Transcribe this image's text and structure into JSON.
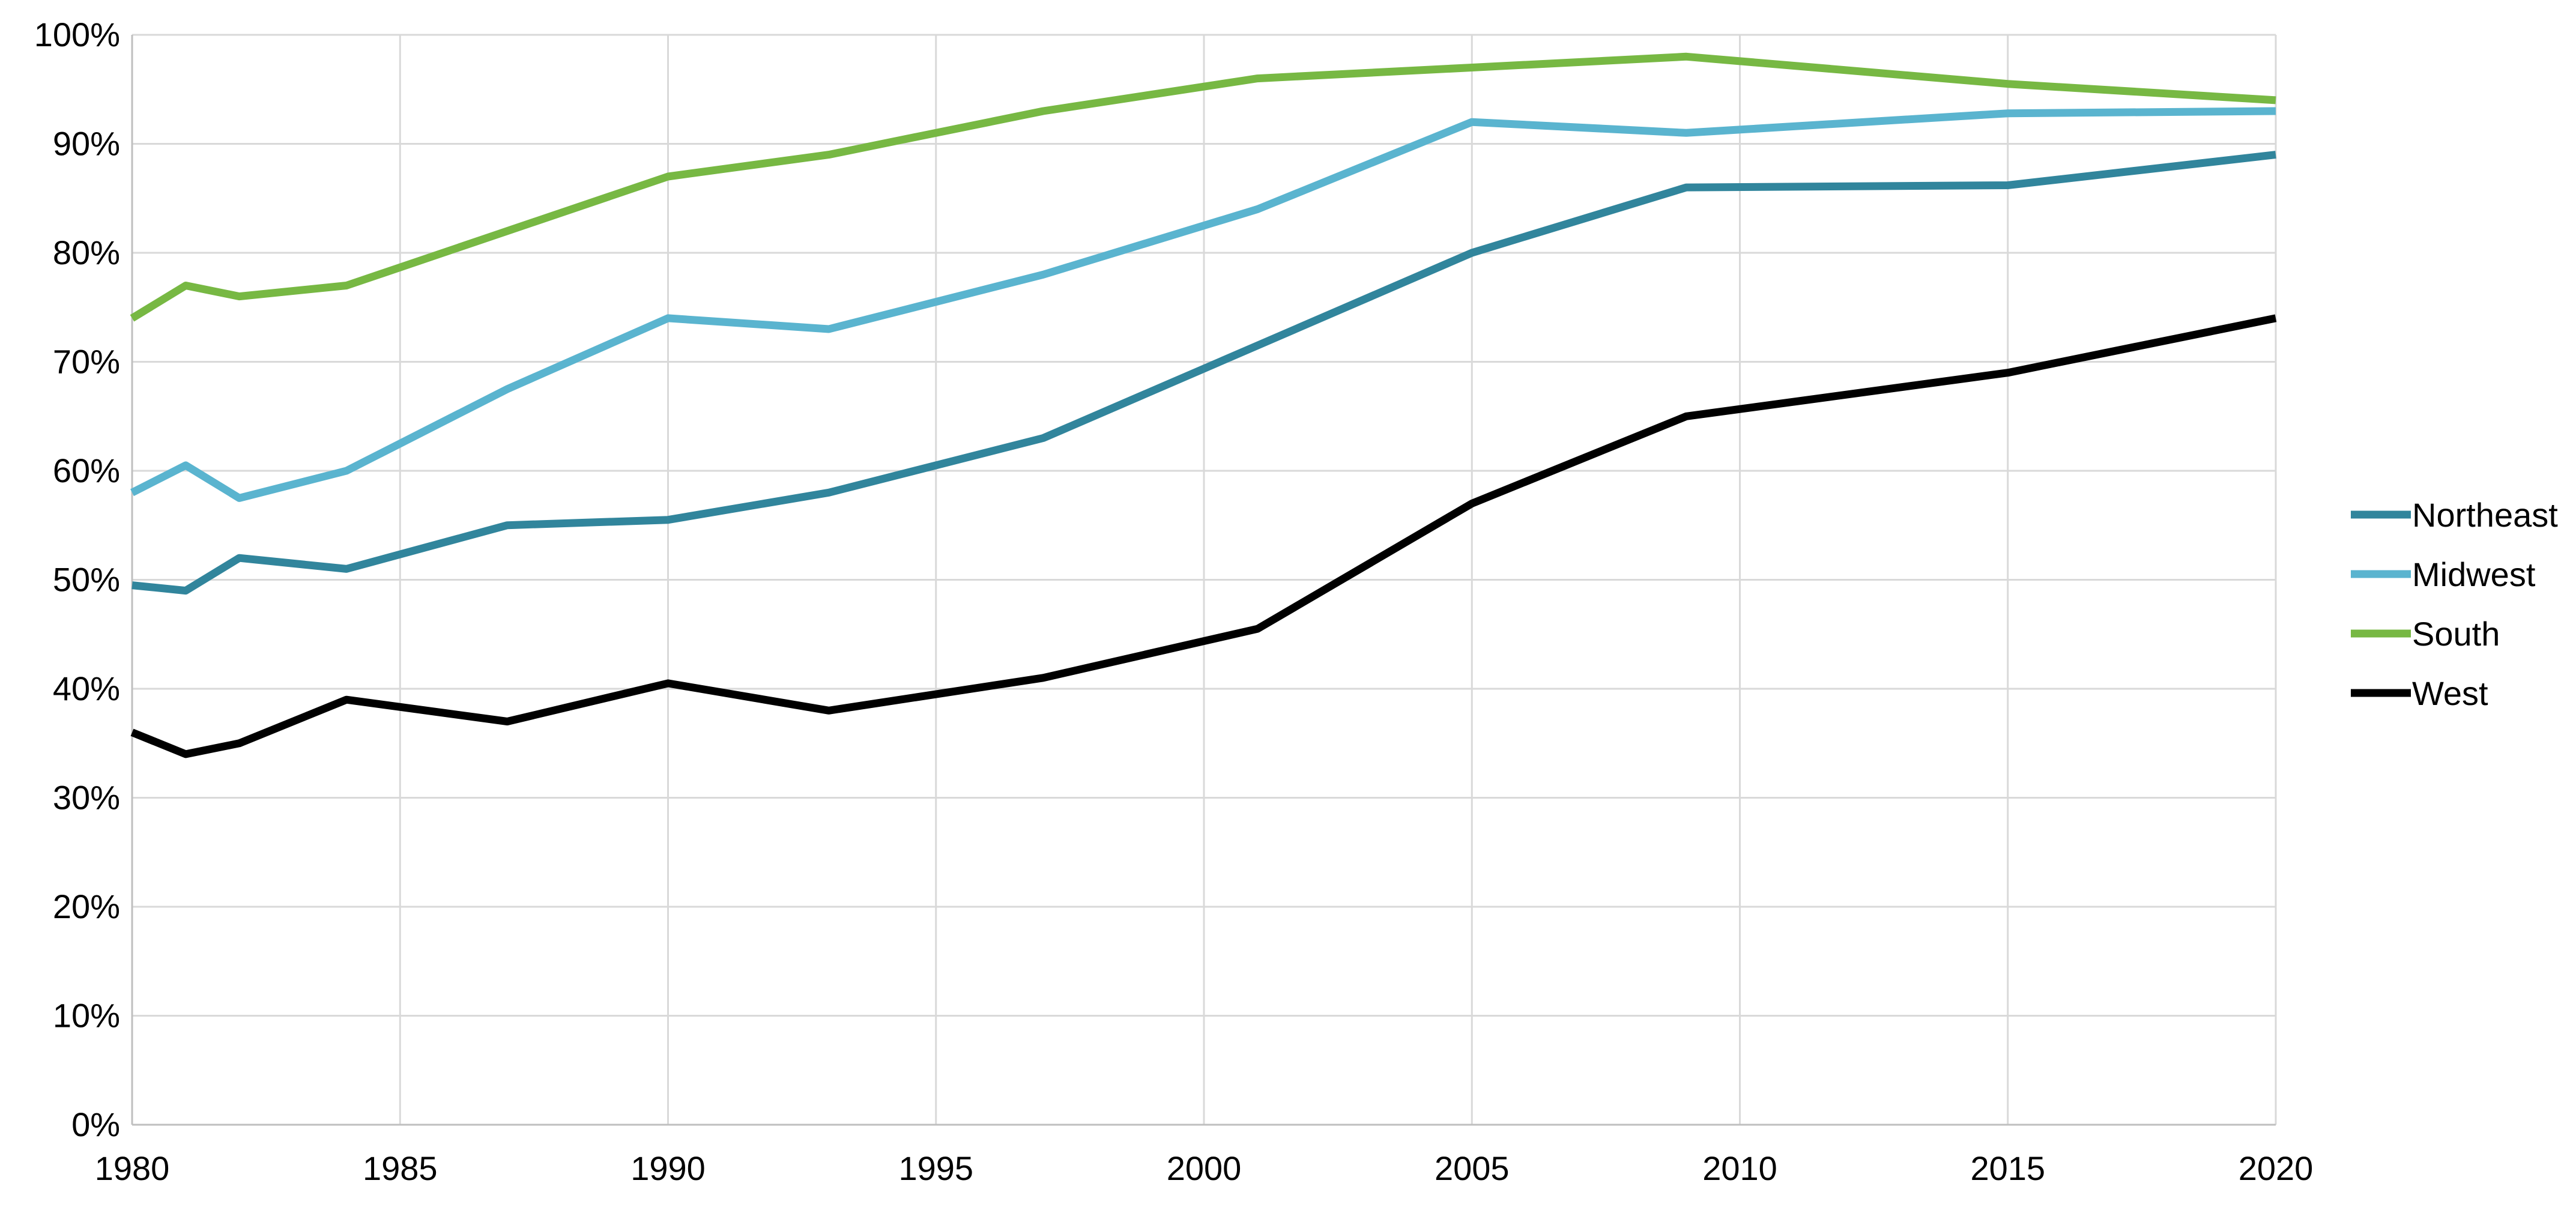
{
  "chart_data": {
    "type": "line",
    "title": "",
    "xlabel": "",
    "ylabel": "",
    "xlim": [
      1980,
      2020
    ],
    "ylim": [
      0,
      100
    ],
    "x_ticks": [
      1980,
      1985,
      1990,
      1995,
      2000,
      2005,
      2010,
      2015,
      2020
    ],
    "y_ticks": [
      0,
      10,
      20,
      30,
      40,
      50,
      60,
      70,
      80,
      90,
      100
    ],
    "y_tick_labels": [
      "0%",
      "10%",
      "20%",
      "30%",
      "40%",
      "50%",
      "60%",
      "70%",
      "80%",
      "90%",
      "100%"
    ],
    "x_tick_labels": [
      "1980",
      "1985",
      "1990",
      "1995",
      "2000",
      "2005",
      "2010",
      "2015",
      "2020"
    ],
    "grid": true,
    "legend_position": "right",
    "series": [
      {
        "name": "Northeast",
        "color": "#31859c",
        "x": [
          1980,
          1981,
          1982,
          1984,
          1987,
          1990,
          1993,
          1997,
          2001,
          2005,
          2009,
          2015,
          2020
        ],
        "y": [
          49.5,
          49,
          52,
          51,
          55,
          55.5,
          58,
          63,
          71.5,
          80,
          86,
          86.2,
          89
        ]
      },
      {
        "name": "Midwest",
        "color": "#5ab4cf",
        "x": [
          1980,
          1981,
          1982,
          1984,
          1987,
          1990,
          1993,
          1997,
          2001,
          2005,
          2009,
          2015,
          2020
        ],
        "y": [
          58,
          60.5,
          57.5,
          60,
          67.5,
          74,
          73,
          78,
          84,
          92,
          91,
          92.8,
          93
        ]
      },
      {
        "name": "South",
        "color": "#77b843",
        "x": [
          1980,
          1981,
          1982,
          1984,
          1987,
          1990,
          1993,
          1997,
          2001,
          2005,
          2009,
          2015,
          2020
        ],
        "y": [
          74,
          77,
          76,
          77,
          82,
          87,
          89,
          93,
          96,
          97,
          98,
          95.5,
          94
        ]
      },
      {
        "name": "West",
        "color": "#000000",
        "x": [
          1980,
          1981,
          1982,
          1984,
          1987,
          1990,
          1993,
          1997,
          2001,
          2005,
          2009,
          2015,
          2020
        ],
        "y": [
          36,
          34,
          35,
          39,
          37,
          40.5,
          38,
          41,
          45.5,
          57,
          65,
          69,
          74
        ]
      }
    ]
  }
}
